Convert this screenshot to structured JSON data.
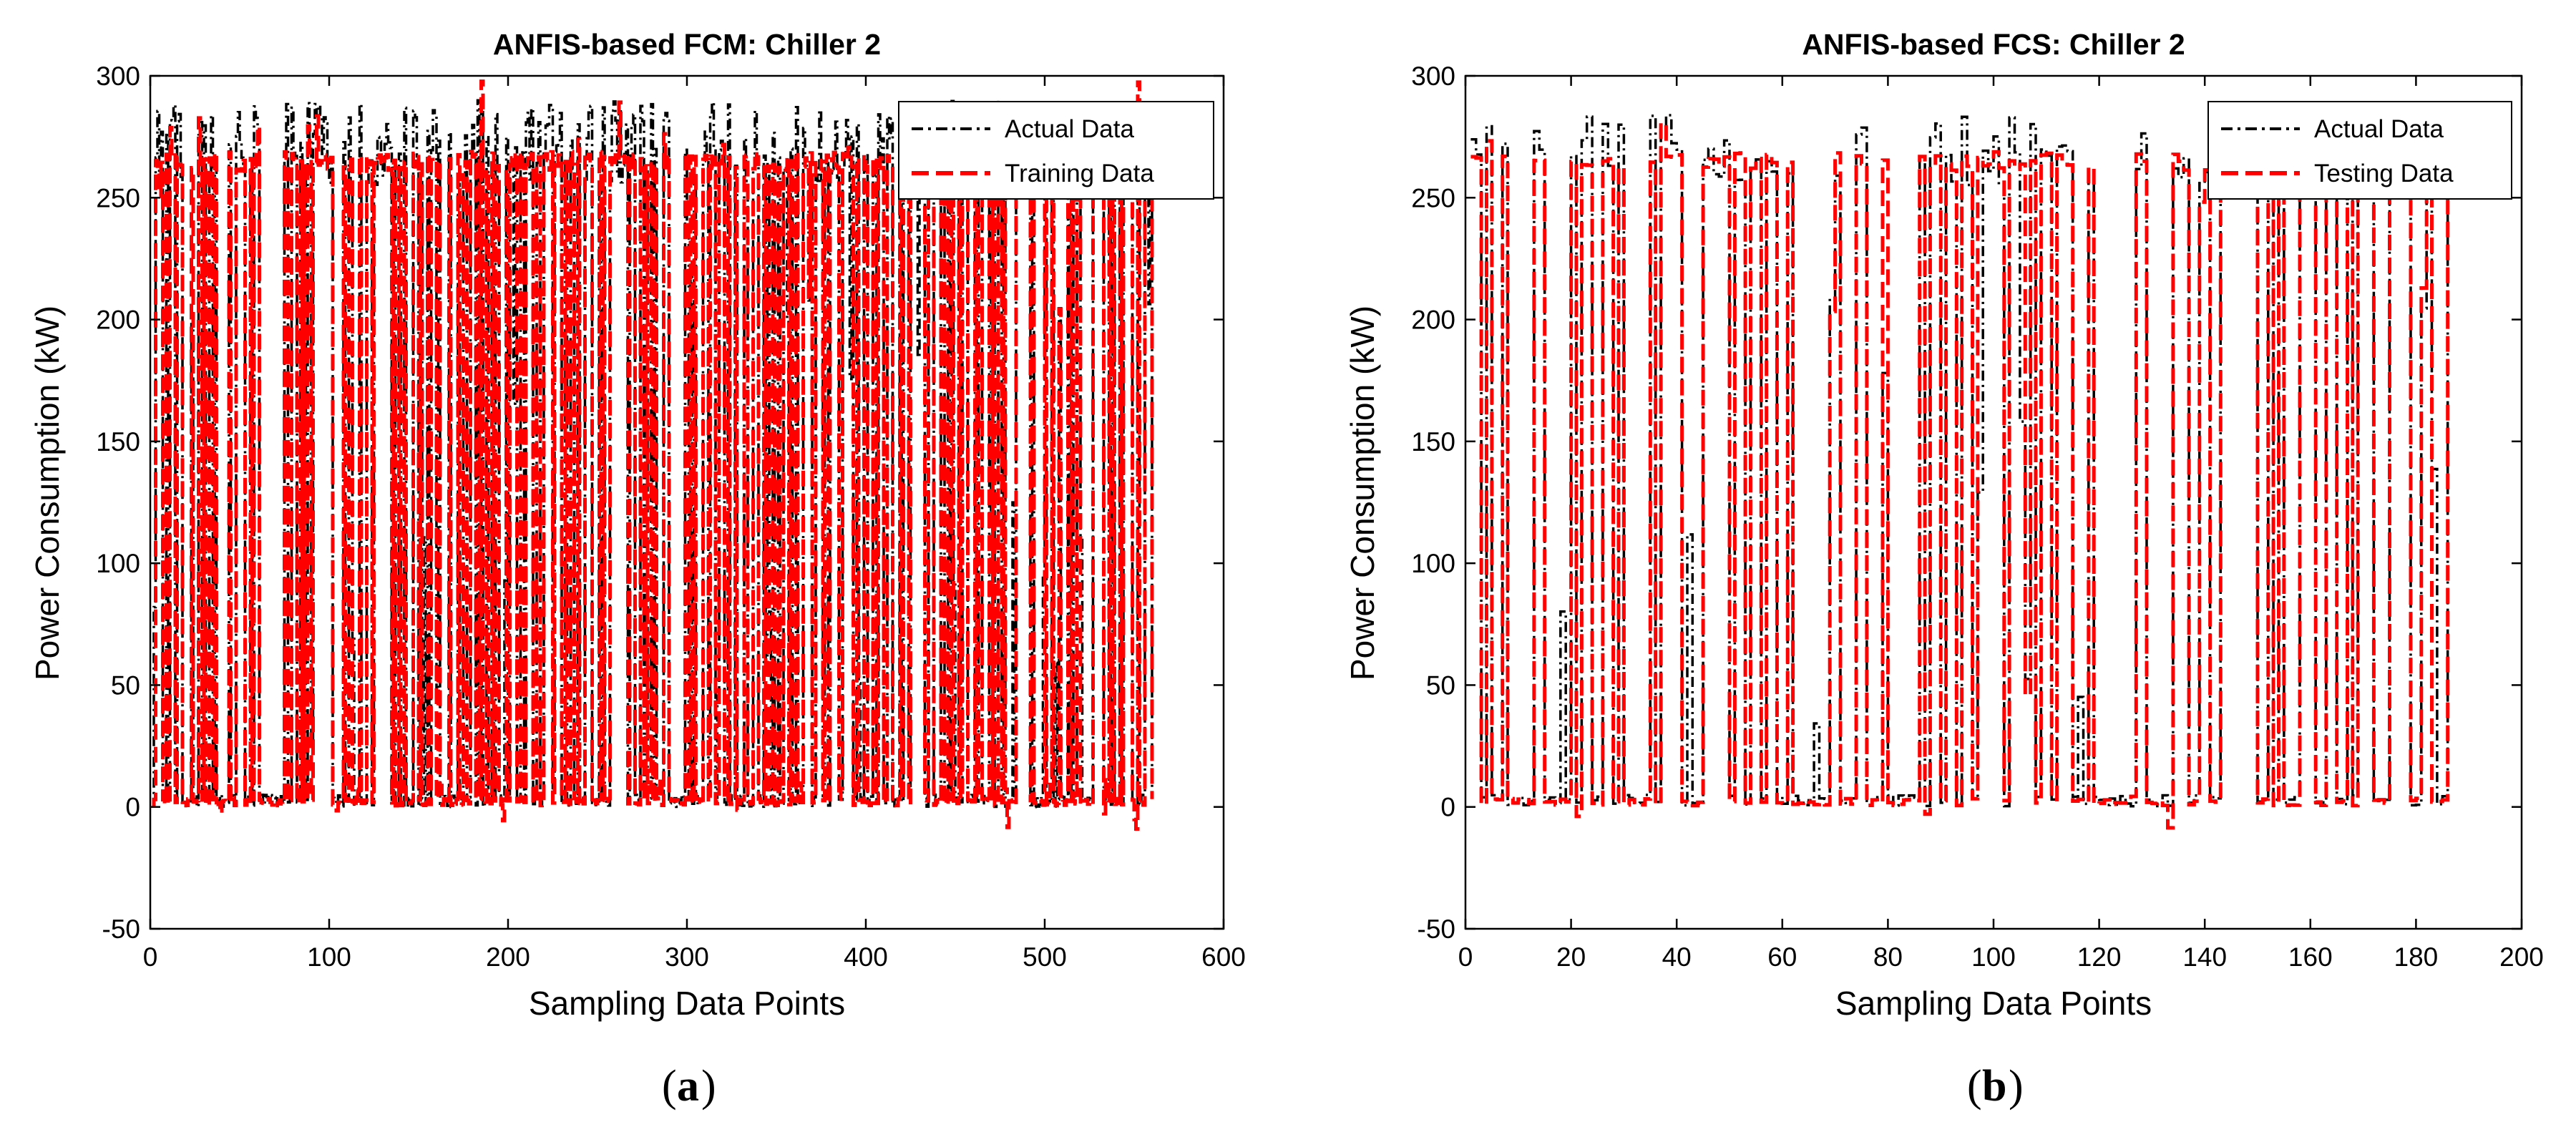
{
  "chart_data": [
    {
      "type": "line",
      "title": "ANFIS-based FCM: Chiller 2",
      "xlabel": "Sampling Data Points",
      "ylabel": "Power Consumption (kW)",
      "xlim": [
        0,
        600
      ],
      "ylim": [
        -50,
        300
      ],
      "xticks": [
        0,
        100,
        200,
        300,
        400,
        500,
        600
      ],
      "yticks": [
        -50,
        0,
        50,
        100,
        150,
        200,
        250,
        300
      ],
      "legend_position": "top-right",
      "panel_label": "a",
      "n_points": 560,
      "series": [
        {
          "name": "Actual Data",
          "style": "dash-dot",
          "color": "#000000"
        },
        {
          "name": "Training Data",
          "style": "dashed",
          "color": "#ff0000"
        }
      ],
      "value_profile": {
        "high_range": [
          255,
          290
        ],
        "low_range": [
          0,
          5
        ],
        "typical_on": 265,
        "typical_off": 2
      }
    },
    {
      "type": "line",
      "title": "ANFIS-based FCS: Chiller 2",
      "xlabel": "Sampling Data Points",
      "ylabel": "Power Consumption (kW)",
      "xlim": [
        0,
        200
      ],
      "ylim": [
        -50,
        300
      ],
      "xticks": [
        0,
        20,
        40,
        60,
        80,
        100,
        120,
        140,
        160,
        180,
        200
      ],
      "yticks": [
        -50,
        0,
        50,
        100,
        150,
        200,
        250,
        300
      ],
      "legend_position": "top-right",
      "panel_label": "b",
      "n_points": 186,
      "series": [
        {
          "name": "Actual Data",
          "style": "dash-dot",
          "color": "#000000"
        },
        {
          "name": "Testing Data",
          "style": "dashed",
          "color": "#ff0000"
        }
      ],
      "value_profile": {
        "high_range": [
          255,
          285
        ],
        "low_range": [
          0,
          5
        ],
        "typical_on": 265,
        "typical_off": 2
      }
    }
  ]
}
